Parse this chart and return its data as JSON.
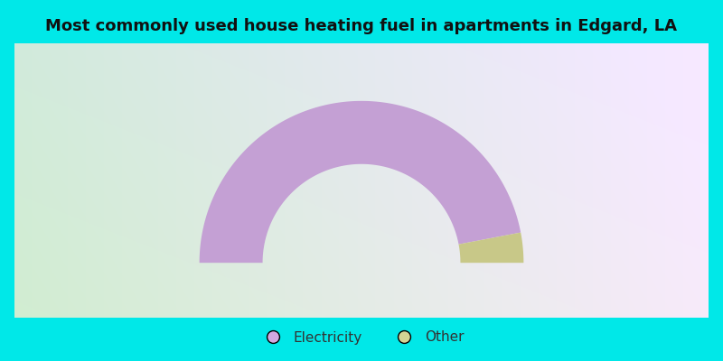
{
  "title": "Most commonly used house heating fuel in apartments in Edgard, LA",
  "title_fontsize": 13,
  "slices": [
    {
      "label": "Electricity",
      "value": 94,
      "color": "#c4a0d4"
    },
    {
      "label": "Other",
      "value": 6,
      "color": "#c8c888"
    }
  ],
  "legend_labels": [
    "Electricity",
    "Other"
  ],
  "legend_colors": [
    "#d4a8e0",
    "#d4d494"
  ],
  "background_border": "#00e8e8",
  "title_bg": "#00e8e8",
  "legend_bg": "#00e8e8"
}
